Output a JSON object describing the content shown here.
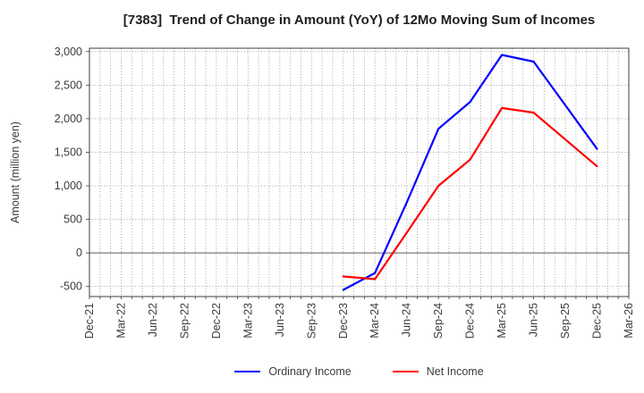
{
  "chart_data": {
    "type": "line",
    "title": "[7383]  Trend of Change in Amount (YoY) of 12Mo Moving Sum of Incomes",
    "ylabel": "Amount (million yen)",
    "ylim": [
      -650,
      3050
    ],
    "x_axis_start": "Dec-21",
    "x_axis_end": "Mar-26",
    "x_tick_labels": [
      "Dec-21",
      "Mar-22",
      "Jun-22",
      "Sep-22",
      "Dec-22",
      "Mar-23",
      "Jun-23",
      "Sep-23",
      "Dec-23",
      "Mar-24",
      "Jun-24",
      "Sep-24",
      "Dec-24",
      "Mar-25",
      "Jun-25",
      "Sep-25",
      "Dec-25",
      "Mar-26"
    ],
    "y_ticks": [
      {
        "value": -500,
        "label": "-500"
      },
      {
        "value": 0,
        "label": "0"
      },
      {
        "value": 500,
        "label": "500"
      },
      {
        "value": 1000,
        "label": "1,000"
      },
      {
        "value": 1500,
        "label": "1,500"
      },
      {
        "value": 2000,
        "label": "2,000"
      },
      {
        "value": 2500,
        "label": "2,500"
      },
      {
        "value": 3000,
        "label": "3,000"
      }
    ],
    "grid": {
      "vertical": "monthly dotted",
      "horizontal": "every 500 dotted",
      "zero_line": "solid"
    },
    "x": [
      "Dec-23",
      "Mar-24",
      "Jun-24",
      "Sep-24",
      "Dec-24",
      "Mar-25",
      "Jun-25",
      "Sep-25",
      "Dec-25"
    ],
    "series": [
      {
        "name": "Ordinary Income",
        "color": "#0000ff",
        "values": [
          -550,
          -300,
          750,
          1850,
          2250,
          2950,
          2850,
          2200,
          1550
        ]
      },
      {
        "name": "Net Income",
        "color": "#ff0000",
        "values": [
          -350,
          -390,
          300,
          1000,
          1390,
          2160,
          2090,
          1690,
          1290
        ]
      }
    ],
    "legend_position": "bottom-center"
  }
}
